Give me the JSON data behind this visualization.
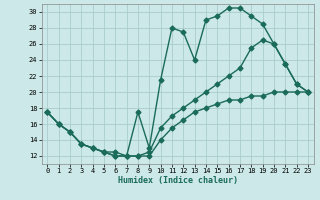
{
  "xlabel": "Humidex (Indice chaleur)",
  "bg_color": "#cce8e8",
  "grid_color": "#aacccc",
  "line_color": "#1a6b5a",
  "marker": "D",
  "marker_size": 2.5,
  "line_width": 1.0,
  "xlim": [
    -0.5,
    23.5
  ],
  "ylim": [
    11,
    31
  ],
  "xticks": [
    0,
    1,
    2,
    3,
    4,
    5,
    6,
    7,
    8,
    9,
    10,
    11,
    12,
    13,
    14,
    15,
    16,
    17,
    18,
    19,
    20,
    21,
    22,
    23
  ],
  "yticks": [
    12,
    14,
    16,
    18,
    20,
    22,
    24,
    26,
    28,
    30
  ],
  "series1_x": [
    0,
    1,
    2,
    3,
    4,
    5,
    6,
    7,
    8,
    9,
    10,
    11,
    12,
    13,
    14,
    15,
    16,
    17,
    18,
    19,
    20,
    21,
    22,
    23
  ],
  "series1_y": [
    17.5,
    16.0,
    15.0,
    13.5,
    13.0,
    12.5,
    12.0,
    12.0,
    17.5,
    13.0,
    21.5,
    28.0,
    27.5,
    24.0,
    29.0,
    29.5,
    30.5,
    30.5,
    29.5,
    28.5,
    26.0,
    23.5,
    21.0,
    20.0
  ],
  "series2_x": [
    0,
    1,
    2,
    3,
    4,
    5,
    6,
    7,
    8,
    9,
    10,
    11,
    12,
    13,
    14,
    15,
    16,
    17,
    18,
    19,
    20,
    21,
    22,
    23
  ],
  "series2_y": [
    17.5,
    16.0,
    15.0,
    13.5,
    13.0,
    12.5,
    12.0,
    12.0,
    12.0,
    12.0,
    14.0,
    15.5,
    16.5,
    17.5,
    18.0,
    18.5,
    19.0,
    19.0,
    19.5,
    19.5,
    20.0,
    20.0,
    20.0,
    20.0
  ],
  "series3_x": [
    0,
    1,
    2,
    3,
    4,
    5,
    6,
    7,
    8,
    9,
    10,
    11,
    12,
    13,
    14,
    15,
    16,
    17,
    18,
    19,
    20,
    21,
    22,
    23
  ],
  "series3_y": [
    17.5,
    16.0,
    15.0,
    13.5,
    13.0,
    12.5,
    12.5,
    12.0,
    12.0,
    12.5,
    15.5,
    17.0,
    18.0,
    19.0,
    20.0,
    21.0,
    22.0,
    23.0,
    25.5,
    26.5,
    26.0,
    23.5,
    21.0,
    20.0
  ]
}
